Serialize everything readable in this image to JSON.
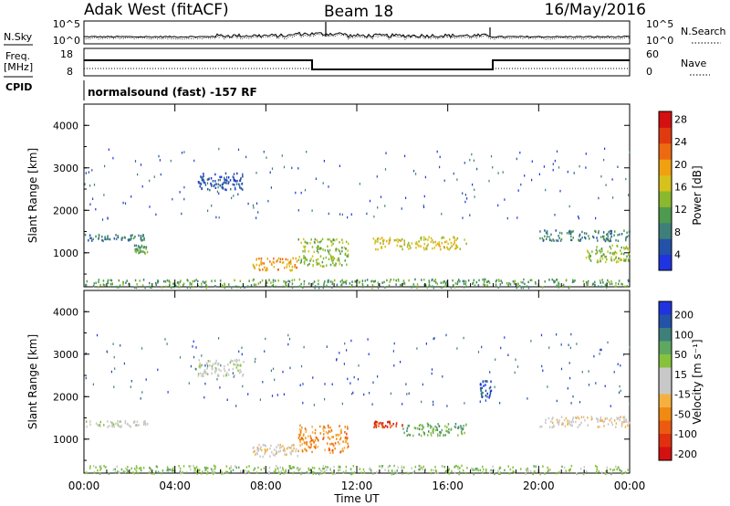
{
  "header": {
    "station": "Adak West (fitACF)",
    "beam": "Beam 18",
    "date": "16/May/2016"
  },
  "noise_panel": {
    "left_label": "N.Sky",
    "right_label": "N.Search",
    "left_ticks": [
      "10^5",
      "10^0"
    ],
    "right_ticks": [
      "10^5",
      "10^0"
    ]
  },
  "freq_panel": {
    "left_label_1": "Freq.",
    "left_label_2": "[MHz]",
    "right_label": "Nave",
    "left_ticks": [
      "18",
      "8"
    ],
    "right_ticks": [
      "60",
      "0"
    ],
    "cpid_label": "CPID",
    "cpid_text": "normalsound (fast) -157 RF"
  },
  "chart_data": [
    {
      "type": "heatmap",
      "name": "power",
      "ylabel": "Slant Range [km]",
      "xlabel": "Time UT",
      "ylim": [
        200,
        4500
      ],
      "yticks": [
        "1000",
        "2000",
        "3000",
        "4000"
      ],
      "xticks": [
        "00:00",
        "04:00",
        "08:00",
        "12:00",
        "16:00",
        "20:00",
        "00:00"
      ],
      "colorbar": {
        "label": "Power [dB]",
        "ticks": [
          "4",
          "8",
          "12",
          "16",
          "20",
          "24",
          "28"
        ],
        "colors": [
          "#1f34e0",
          "#2452a8",
          "#3f7f7a",
          "#4e9a4e",
          "#8ab82e",
          "#d6c21a",
          "#f0a010",
          "#ee6a10",
          "#e23a10",
          "#d41010"
        ]
      },
      "features": [
        {
          "t": [
            0.0,
            2.8
          ],
          "range": [
            1300,
            1450
          ],
          "level": 2
        },
        {
          "t": [
            2.2,
            2.8
          ],
          "range": [
            1000,
            1200
          ],
          "level": 3
        },
        {
          "t": [
            5.0,
            7.0
          ],
          "range": [
            2500,
            2900
          ],
          "level": 1
        },
        {
          "t": [
            7.4,
            9.4
          ],
          "range": [
            600,
            900
          ],
          "level": 6
        },
        {
          "t": [
            9.4,
            11.6
          ],
          "range": [
            700,
            1350
          ],
          "level": 4
        },
        {
          "t": [
            12.7,
            16.8
          ],
          "range": [
            1100,
            1400
          ],
          "level": 5
        },
        {
          "t": [
            20.0,
            24.0
          ],
          "range": [
            1300,
            1550
          ],
          "level": 2
        },
        {
          "t": [
            22.0,
            24.0
          ],
          "range": [
            800,
            1200
          ],
          "level": 4
        },
        {
          "t": [
            0.0,
            24.0
          ],
          "range": [
            200,
            400
          ],
          "level": 3
        }
      ]
    },
    {
      "type": "heatmap",
      "name": "velocity",
      "ylabel": "Slant Range [km]",
      "xlabel": "Time UT",
      "ylim": [
        200,
        4500
      ],
      "yticks": [
        "1000",
        "2000",
        "3000",
        "4000"
      ],
      "xticks": [
        "00:00",
        "04:00",
        "08:00",
        "12:00",
        "16:00",
        "20:00",
        "00:00"
      ],
      "colorbar": {
        "label": "Velocity [m s⁻¹]",
        "ticks": [
          "200",
          "100",
          "50",
          "15",
          "-15",
          "-50",
          "-100",
          "-200"
        ],
        "colors": [
          "#1f34e0",
          "#2452a8",
          "#3f7f7a",
          "#5fa85f",
          "#86c23c",
          "#c8c8c8",
          "#c8c8c8",
          "#f6b040",
          "#f08a10",
          "#ec5a10",
          "#e03010",
          "#d41010"
        ]
      },
      "features": [
        {
          "t": [
            0.0,
            2.8
          ],
          "range": [
            1300,
            1450
          ],
          "level": 5
        },
        {
          "t": [
            5.0,
            7.0
          ],
          "range": [
            2500,
            2900
          ],
          "level": 5
        },
        {
          "t": [
            7.4,
            9.4
          ],
          "range": [
            600,
            900
          ],
          "level": 6
        },
        {
          "t": [
            9.4,
            11.6
          ],
          "range": [
            700,
            1350
          ],
          "level": 8
        },
        {
          "t": [
            12.7,
            14.0
          ],
          "range": [
            1300,
            1450
          ],
          "level": 10
        },
        {
          "t": [
            14.0,
            16.8
          ],
          "range": [
            1100,
            1400
          ],
          "level": 3
        },
        {
          "t": [
            17.4,
            17.9
          ],
          "range": [
            2000,
            2400
          ],
          "level": 1
        },
        {
          "t": [
            20.0,
            24.0
          ],
          "range": [
            1300,
            1550
          ],
          "level": 6
        },
        {
          "t": [
            0.0,
            24.0
          ],
          "range": [
            200,
            400
          ],
          "level": 4
        }
      ]
    }
  ]
}
